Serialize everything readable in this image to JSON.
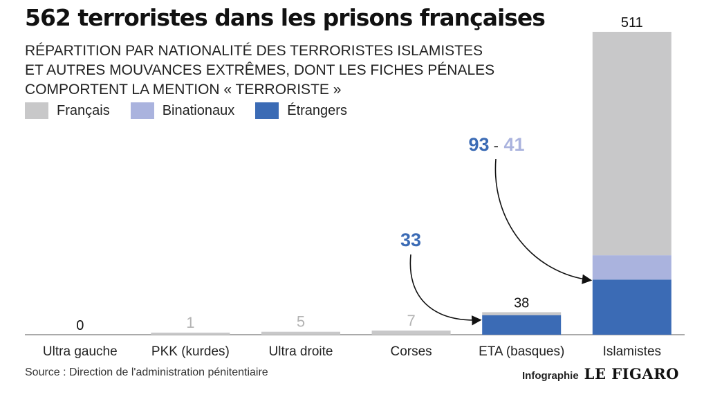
{
  "title": "562 terroristes dans les prisons françaises",
  "subtitle_lines": [
    "RÉPARTITION PAR NATIONALITÉ DES TERRORISTES ISLAMISTES",
    "ET AUTRES MOUVANCES EXTRÊMES, DONT LES FICHES PÉNALES",
    "COMPORTENT LA MENTION « TERRORISTE »"
  ],
  "legend": [
    {
      "label": "Français",
      "color": "#c8c8c9"
    },
    {
      "label": "Binationaux",
      "color": "#aab3de"
    },
    {
      "label": "Étrangers",
      "color": "#3b6bb5"
    }
  ],
  "source": "Source : Direction de l'administration pénitentiaire",
  "credit": {
    "label": "Infographie",
    "brand": "LE FIGARO"
  },
  "chart_data": {
    "type": "bar",
    "stacked": true,
    "categories": [
      "Ultra gauche",
      "PKK (kurdes)",
      "Ultra droite",
      "Corses",
      "ETA (basques)",
      "Islamistes"
    ],
    "totals": [
      0,
      1,
      5,
      7,
      38,
      511
    ],
    "series": [
      {
        "name": "Étrangers",
        "color": "#3b6bb5",
        "values": [
          0,
          0,
          0,
          0,
          33,
          93
        ]
      },
      {
        "name": "Binationaux",
        "color": "#aab3de",
        "values": [
          0,
          0,
          0,
          0,
          0,
          41
        ]
      },
      {
        "name": "Français",
        "color": "#c8c8c9",
        "values": [
          0,
          1,
          5,
          7,
          5,
          377
        ]
      }
    ],
    "annotations": [
      {
        "category": "ETA (basques)",
        "parts": [
          {
            "text": "33",
            "series": "Étrangers"
          }
        ]
      },
      {
        "category": "Islamistes",
        "parts": [
          {
            "text": "93",
            "series": "Étrangers"
          },
          {
            "text": "-",
            "series": ""
          },
          {
            "text": "41",
            "series": "Binationaux"
          }
        ]
      }
    ],
    "ylim": [
      0,
      511
    ],
    "grid": false,
    "legend_position": "top-left"
  }
}
